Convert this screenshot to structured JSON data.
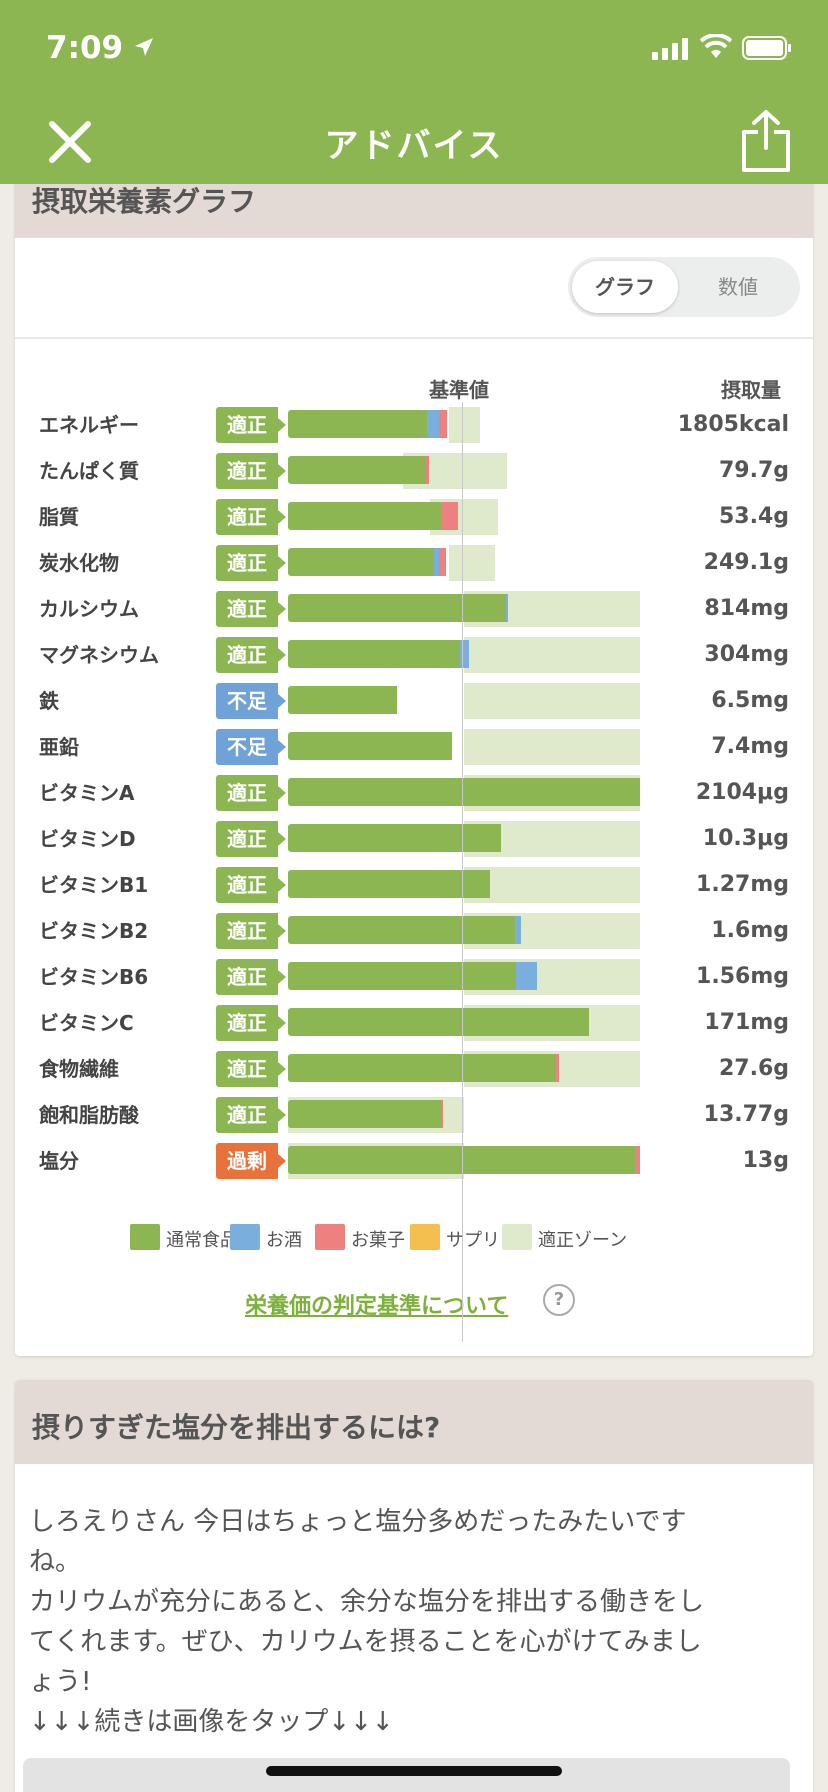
{
  "status_bar": {
    "time": "7:09"
  },
  "nav": {
    "title": "アドバイス",
    "close_icon": "close-icon",
    "share_icon": "share-icon"
  },
  "graph_card": {
    "title": "摂取栄養素グラフ",
    "toggle": {
      "options": [
        "グラフ",
        "数値"
      ],
      "selected": "グラフ"
    },
    "col_ref": "基準値",
    "col_intake": "摂取量",
    "colors": {
      "normal": "#8cb651",
      "alcohol": "#7aaedc",
      "snack": "#ee8080",
      "supplement": "#f4bf4f",
      "zone": "#dfeacc",
      "ok": "#8cb651",
      "low": "#6fa3d8",
      "high": "#e9723a"
    },
    "rows": [
      {
        "name": "エネルギー",
        "status": "適正",
        "kind": "ok",
        "value": "1805kcal",
        "zone": [
          0.456,
          0.546
        ],
        "segs": [
          {
            "c": "normal",
            "to": 0.394
          },
          {
            "c": "alcohol",
            "to": 0.428
          },
          {
            "c": "snack",
            "to": 0.452
          }
        ]
      },
      {
        "name": "たんぱく質",
        "status": "適正",
        "kind": "ok",
        "value": "79.7g",
        "zone": [
          0.328,
          0.623
        ],
        "segs": [
          {
            "c": "normal",
            "to": 0.388
          },
          {
            "c": "snack",
            "to": 0.4
          }
        ]
      },
      {
        "name": "脂質",
        "status": "適正",
        "kind": "ok",
        "value": "53.4g",
        "zone": [
          0.402,
          0.598
        ],
        "segs": [
          {
            "c": "normal",
            "to": 0.436
          },
          {
            "c": "snack",
            "to": 0.484
          }
        ]
      },
      {
        "name": "炭水化物",
        "status": "適正",
        "kind": "ok",
        "value": "249.1g",
        "zone": [
          0.456,
          0.589
        ],
        "segs": [
          {
            "c": "normal",
            "to": 0.416
          },
          {
            "c": "alcohol",
            "to": 0.43
          },
          {
            "c": "snack",
            "to": 0.448
          }
        ]
      },
      {
        "name": "カルシウム",
        "status": "適正",
        "kind": "ok",
        "value": "814mg",
        "zone": [
          0.5,
          1.0
        ],
        "segs": [
          {
            "c": "normal",
            "to": 0.62
          },
          {
            "c": "alcohol",
            "to": 0.625
          }
        ]
      },
      {
        "name": "マグネシウム",
        "status": "適正",
        "kind": "ok",
        "value": "304mg",
        "zone": [
          0.5,
          1.0
        ],
        "segs": [
          {
            "c": "normal",
            "to": 0.488
          },
          {
            "c": "alcohol",
            "to": 0.515
          }
        ]
      },
      {
        "name": "鉄",
        "status": "不足",
        "kind": "low",
        "value": "6.5mg",
        "zone": [
          0.5,
          1.0
        ],
        "segs": [
          {
            "c": "normal",
            "to": 0.31
          }
        ]
      },
      {
        "name": "亜鉛",
        "status": "不足",
        "kind": "low",
        "value": "7.4mg",
        "zone": [
          0.5,
          1.0
        ],
        "segs": [
          {
            "c": "normal",
            "to": 0.466
          }
        ]
      },
      {
        "name": "ビタミンA",
        "status": "適正",
        "kind": "ok",
        "value": "2104μg",
        "zone": [
          0.5,
          1.0
        ],
        "segs": [
          {
            "c": "normal",
            "to": 1.0
          }
        ]
      },
      {
        "name": "ビタミンD",
        "status": "適正",
        "kind": "ok",
        "value": "10.3μg",
        "zone": [
          0.5,
          1.0
        ],
        "segs": [
          {
            "c": "normal",
            "to": 0.606
          }
        ]
      },
      {
        "name": "ビタミンB1",
        "status": "適正",
        "kind": "ok",
        "value": "1.27mg",
        "zone": [
          0.5,
          1.0
        ],
        "segs": [
          {
            "c": "normal",
            "to": 0.574
          }
        ]
      },
      {
        "name": "ビタミンB2",
        "status": "適正",
        "kind": "ok",
        "value": "1.6mg",
        "zone": [
          0.5,
          1.0
        ],
        "segs": [
          {
            "c": "normal",
            "to": 0.644
          },
          {
            "c": "alcohol",
            "to": 0.662
          }
        ]
      },
      {
        "name": "ビタミンB6",
        "status": "適正",
        "kind": "ok",
        "value": "1.56mg",
        "zone": [
          0.5,
          1.0
        ],
        "segs": [
          {
            "c": "normal",
            "to": 0.648
          },
          {
            "c": "alcohol",
            "to": 0.706
          }
        ]
      },
      {
        "name": "ビタミンC",
        "status": "適正",
        "kind": "ok",
        "value": "171mg",
        "zone": [
          0.5,
          1.0
        ],
        "segs": [
          {
            "c": "normal",
            "to": 0.856
          }
        ]
      },
      {
        "name": "食物繊維",
        "status": "適正",
        "kind": "ok",
        "value": "27.6g",
        "zone": [
          0.5,
          1.0
        ],
        "segs": [
          {
            "c": "normal",
            "to": 0.76
          },
          {
            "c": "snack",
            "to": 0.77
          }
        ]
      },
      {
        "name": "飽和脂肪酸",
        "status": "適正",
        "kind": "ok",
        "value": "13.77g",
        "zone": [
          0.0,
          0.5
        ],
        "segs": [
          {
            "c": "normal",
            "to": 0.434
          },
          {
            "c": "snack",
            "to": 0.44
          }
        ]
      },
      {
        "name": "塩分",
        "status": "過剰",
        "kind": "high",
        "value": "13g",
        "zone": [
          0.0,
          0.5
        ],
        "segs": [
          {
            "c": "normal",
            "to": 0.986
          },
          {
            "c": "snack",
            "to": 1.0
          }
        ]
      }
    ],
    "legend": [
      {
        "label": "通常食品",
        "color": "#8cb651"
      },
      {
        "label": "お酒",
        "color": "#7aaedc"
      },
      {
        "label": "お菓子",
        "color": "#ee8080"
      },
      {
        "label": "サプリ",
        "color": "#f4bf4f"
      },
      {
        "label": "適正ゾーン",
        "color": "#dfeacc"
      }
    ],
    "criteria_link": "栄養価の判定基準について",
    "help": "?"
  },
  "advice_card": {
    "title": "摂りすぎた塩分を排出するには?",
    "lines": [
      "しろえりさん 今日はちょっと塩分多めだったみたいです",
      "ね。",
      "カリウムが充分にあると、余分な塩分を排出する働きをし",
      "てくれます。ぜひ、カリウムを摂ることを心がけてみまし",
      "ょう!",
      "↓↓↓続きは画像をタップ↓↓↓"
    ]
  }
}
